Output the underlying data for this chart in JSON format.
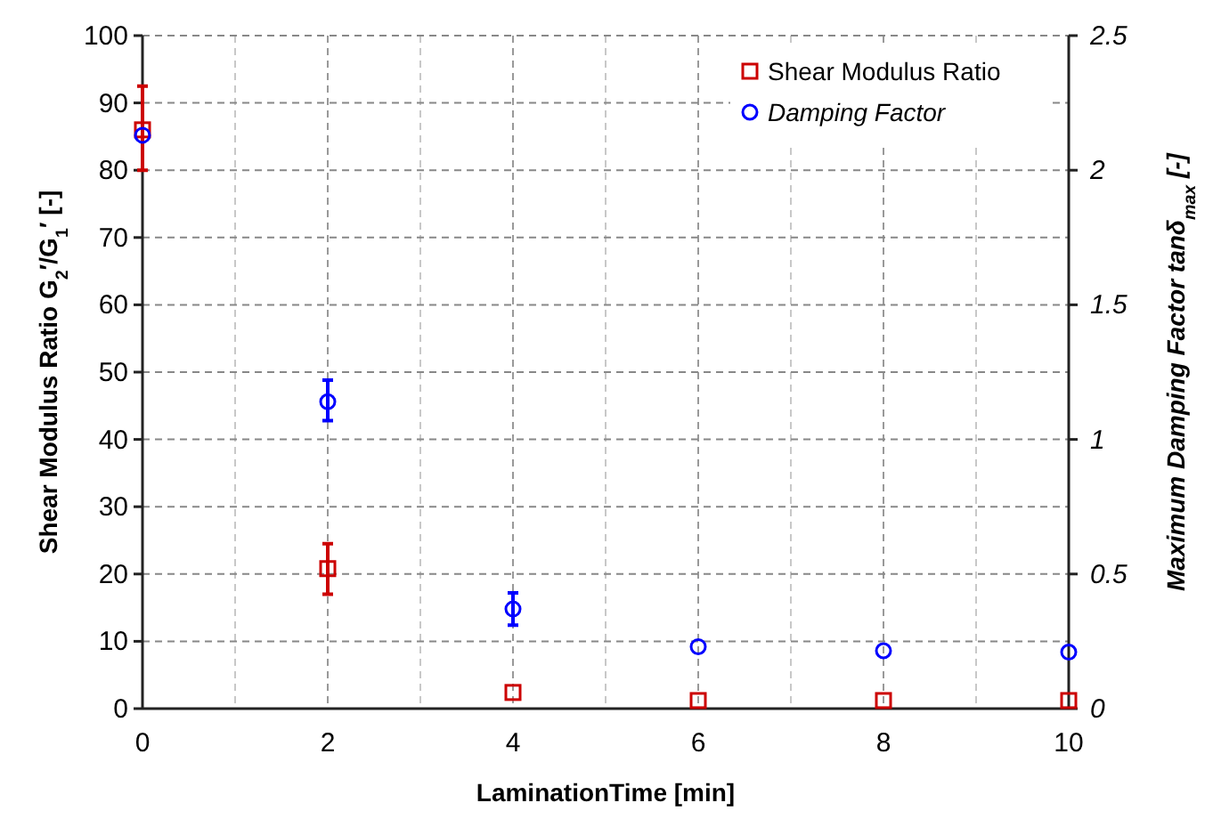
{
  "chart_data": {
    "type": "scatter",
    "xlabel": "LaminationTime [min]",
    "ylabel": "Shear Modulus Ratio G$_{2}$′/G$_{1}$′ [-]",
    "y2label": "Maximum Damping Factor tanδ$_{max}$ [-]",
    "x": [
      0,
      2,
      4,
      6,
      8,
      10
    ],
    "xlim": [
      0,
      10
    ],
    "xticks": [
      0,
      {
        "value": 1,
        "label": null
      },
      2,
      {
        "value": 3,
        "label": null
      },
      4,
      {
        "value": 5,
        "label": null
      },
      6,
      {
        "value": 7,
        "label": null
      },
      8,
      {
        "value": 9,
        "label": null
      },
      10
    ],
    "ylim": [
      0,
      100
    ],
    "yticks": [
      0,
      10,
      20,
      30,
      40,
      50,
      60,
      70,
      80,
      90,
      100
    ],
    "y2lim": [
      0,
      2.5
    ],
    "y2ticks": [
      0,
      0.5,
      1,
      1.5,
      2,
      2.5
    ],
    "grid": true,
    "legend": "top right",
    "series": [
      {
        "name": "Shear Modulus Ratio",
        "color": "#cc0000",
        "marker": "square",
        "values": [
          86,
          20.8,
          2.4,
          1.2,
          1.2,
          1.2
        ],
        "errors": [
          [
            80,
            92.5
          ],
          [
            17,
            24.5
          ],
          null,
          null,
          null,
          null
        ]
      },
      {
        "name": "Damping Factor",
        "color": "#0000ff",
        "marker": "circle",
        "axis": "y2",
        "values": [
          2.13,
          1.14,
          0.37,
          0.23,
          0.215,
          0.21
        ],
        "errors": [
          null,
          [
            1.07,
            1.22
          ],
          [
            0.31,
            0.43
          ],
          null,
          null,
          null
        ]
      }
    ]
  }
}
